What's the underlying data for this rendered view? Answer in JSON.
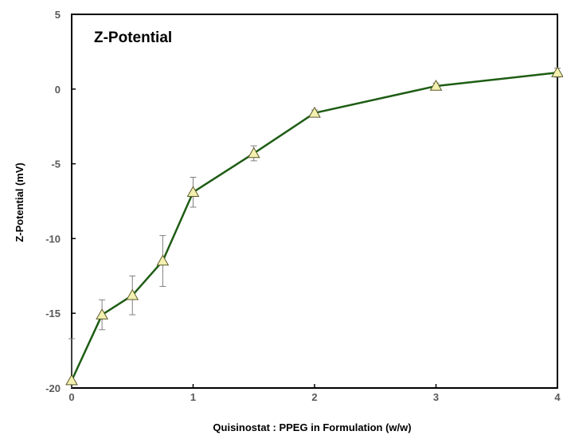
{
  "chart_data": {
    "type": "line",
    "title": "Z-Potential",
    "xlabel": "Quisinostat : PPEG in Formulation (w/w)",
    "ylabel": "Z-Potential (mV)",
    "xlim": [
      0,
      4
    ],
    "ylim": [
      -20,
      5
    ],
    "x_ticks": [
      "0",
      "1",
      "2",
      "3",
      "4"
    ],
    "y_ticks": [
      "5",
      "0",
      "-5",
      "-10",
      "-15",
      "-20"
    ],
    "grid": false,
    "series": [
      {
        "x": [
          0,
          0.25,
          0.5,
          0.75,
          1,
          1.5,
          2,
          3,
          4
        ],
        "y": [
          -19.5,
          -15.1,
          -13.8,
          -11.5,
          -6.9,
          -4.3,
          -1.6,
          0.2,
          1.1
        ],
        "error": [
          2.8,
          1.0,
          1.3,
          1.7,
          1.0,
          0.5,
          0.2,
          0.2,
          0.3
        ],
        "line_color": "#1e5c14",
        "marker": "triangle",
        "marker_fill": "#f3f0b0",
        "marker_edge": "#5a5a2a"
      }
    ]
  }
}
